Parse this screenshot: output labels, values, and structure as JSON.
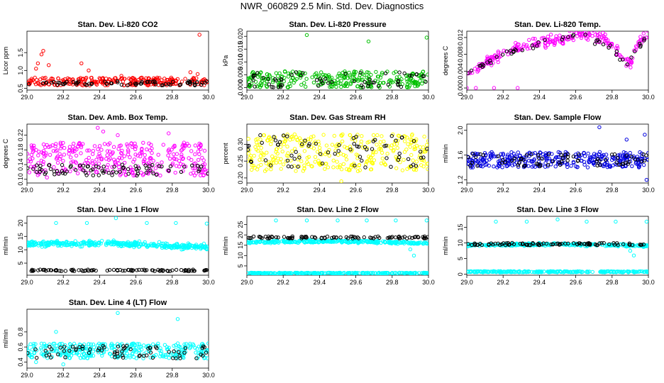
{
  "page": {
    "title": "NWR_060829  2.5 Min. Std. Dev. Diagnostics"
  },
  "chart_data": [
    {
      "type": "scatter",
      "title": "Stan. Dev. Li-820 CO2",
      "ylabel": "Licor ppm",
      "xlim": [
        29.0,
        30.0
      ],
      "ylim": [
        0.45,
        2.1
      ],
      "xticks": [
        "29.0",
        "29.2",
        "29.4",
        "29.6",
        "29.8",
        "30.0"
      ],
      "yticks": [
        "0.5",
        "1.0",
        "1.5"
      ],
      "colors": {
        "main": "#ff0000",
        "secondary": "#000000"
      },
      "series": [
        {
          "color": "#ff0000",
          "band": [
            0.58,
            0.8
          ],
          "count": 260,
          "outliers": [
            [
              29.08,
              1.45
            ],
            [
              29.09,
              1.55
            ],
            [
              29.06,
              1.2
            ],
            [
              29.12,
              1.15
            ],
            [
              29.05,
              1.05
            ],
            [
              29.3,
              1.2
            ],
            [
              29.34,
              1.0
            ],
            [
              29.95,
              2.0
            ],
            [
              29.9,
              0.95
            ],
            [
              29.94,
              0.9
            ],
            [
              29.52,
              0.85
            ]
          ]
        },
        {
          "color": "#000000",
          "band": [
            0.58,
            0.7
          ],
          "count": 70,
          "outliers": []
        }
      ]
    },
    {
      "type": "scatter",
      "title": "Stan. Dev. Li-820 Pressure",
      "ylabel": "kPa",
      "xlim": [
        29.0,
        30.0
      ],
      "ylim": [
        -0.001,
        0.022
      ],
      "xticks": [
        "29.0",
        "29.2",
        "29.4",
        "29.6",
        "29.8",
        "30.0"
      ],
      "yticks": [
        "0.000",
        "0.005",
        "0.010",
        "0.015",
        "0.020"
      ],
      "colors": {
        "main": "#00c000",
        "secondary": "#000000"
      },
      "series": [
        {
          "color": "#00c000",
          "band": [
            0.0,
            0.0065
          ],
          "count": 280,
          "outliers": [
            [
              29.33,
              0.0205
            ],
            [
              29.67,
              0.018
            ],
            [
              29.99,
              0.0195
            ]
          ]
        },
        {
          "color": "#000000",
          "band": [
            0.0,
            0.006
          ],
          "count": 60,
          "outliers": []
        }
      ]
    },
    {
      "type": "scatter",
      "title": "Stan. Dev. Li-820 Temp.",
      "ylabel": "degrees C",
      "xlim": [
        29.0,
        30.0
      ],
      "ylim": [
        -0.0005,
        0.0135
      ],
      "xticks": [
        "29.0",
        "29.2",
        "29.4",
        "29.6",
        "29.8",
        "30.0"
      ],
      "yticks": [
        "0.000",
        "0.004",
        "0.008",
        "0.012"
      ],
      "colors": {
        "main": "#ff00ff",
        "secondary": "#000000"
      },
      "series": [
        {
          "color": "#ff00ff",
          "curve": [
            [
              29.0,
              0.003
            ],
            [
              29.1,
              0.006
            ],
            [
              29.2,
              0.008
            ],
            [
              29.3,
              0.01
            ],
            [
              29.45,
              0.011
            ],
            [
              29.55,
              0.012
            ],
            [
              29.65,
              0.0128
            ],
            [
              29.75,
              0.012
            ],
            [
              29.8,
              0.01
            ],
            [
              29.86,
              0.007
            ],
            [
              29.9,
              0.006
            ],
            [
              29.95,
              0.011
            ],
            [
              30.0,
              0.013
            ]
          ],
          "spread": 0.0018,
          "count": 240,
          "outliers": [
            [
              29.0,
              0.0
            ],
            [
              29.05,
              0.0
            ],
            [
              29.15,
              0.0
            ],
            [
              29.28,
              0.0
            ]
          ]
        },
        {
          "color": "#000000",
          "curve": [
            [
              29.0,
              0.003
            ],
            [
              29.2,
              0.008
            ],
            [
              29.45,
              0.011
            ],
            [
              29.65,
              0.0125
            ],
            [
              29.8,
              0.009
            ],
            [
              29.88,
              0.006
            ],
            [
              30.0,
              0.0128
            ]
          ],
          "spread": 0.0012,
          "count": 50,
          "outliers": []
        }
      ]
    },
    {
      "type": "scatter",
      "title": "Stan. Dev. Amb. Box Temp.",
      "ylabel": "degrees C",
      "xlim": [
        29.0,
        30.0
      ],
      "ylim": [
        0.09,
        0.25
      ],
      "xticks": [
        "29.0",
        "29.2",
        "29.4",
        "29.6",
        "29.8",
        "30.0"
      ],
      "yticks": [
        "0.10",
        "0.14",
        "0.18",
        "0.22"
      ],
      "colors": {
        "main": "#ff00ff",
        "secondary": "#000000"
      },
      "series": [
        {
          "color": "#ff00ff",
          "band": [
            0.11,
            0.2
          ],
          "count": 330,
          "outliers": [
            [
              29.39,
              0.24
            ],
            [
              29.42,
              0.23
            ],
            [
              29.5,
              0.22
            ],
            [
              29.78,
              0.225
            ],
            [
              29.11,
              0.105
            ]
          ]
        },
        {
          "color": "#000000",
          "band": [
            0.11,
            0.14
          ],
          "count": 80,
          "outliers": []
        }
      ]
    },
    {
      "type": "scatter",
      "title": "Stan. Dev. Gas Stream RH",
      "ylabel": "percent",
      "xlim": [
        29.0,
        30.0
      ],
      "ylim": [
        0.185,
        0.36
      ],
      "xticks": [
        "29.0",
        "29.2",
        "29.4",
        "29.6",
        "29.8",
        "30.0"
      ],
      "yticks": [
        "0.20",
        "0.25",
        "0.30"
      ],
      "colors": {
        "main": "#ffff00",
        "secondary": "#000000"
      },
      "series": [
        {
          "color": "#ffff00",
          "band": [
            0.22,
            0.33
          ],
          "count": 320,
          "outliers": [
            [
              29.52,
              0.19
            ]
          ]
        },
        {
          "color": "#000000",
          "band": [
            0.23,
            0.33
          ],
          "count": 70,
          "outliers": []
        }
      ]
    },
    {
      "type": "scatter",
      "title": "Stan. Dev. Sample Flow",
      "ylabel": "ml/min",
      "xlim": [
        29.0,
        30.0
      ],
      "ylim": [
        1.15,
        2.1
      ],
      "xticks": [
        "29.0",
        "29.2",
        "29.4",
        "29.6",
        "29.8",
        "30.0"
      ],
      "yticks": [
        "1.2",
        "1.6",
        "2.0"
      ],
      "colors": {
        "main": "#0000e0",
        "secondary": "#000000"
      },
      "series": [
        {
          "color": "#0000e0",
          "band": [
            1.4,
            1.65
          ],
          "count": 330,
          "outliers": [
            [
              29.98,
              1.93
            ],
            [
              29.73,
              2.05
            ],
            [
              29.88,
              1.85
            ],
            [
              29.99,
              1.2
            ]
          ]
        },
        {
          "color": "#000000",
          "band": [
            1.42,
            1.62
          ],
          "count": 70,
          "outliers": []
        }
      ]
    },
    {
      "type": "scatter",
      "title": "Stan. Dev. Line 1 Flow",
      "ylabel": "ml/min",
      "xlim": [
        29.0,
        30.0
      ],
      "ylim": [
        0.5,
        22.5
      ],
      "xticks": [
        "29.0",
        "29.2",
        "29.4",
        "29.6",
        "29.8",
        "30.0"
      ],
      "yticks": [
        "5",
        "10",
        "15",
        "20"
      ],
      "colors": {
        "main": "#00ffff",
        "secondary": "#000000"
      },
      "series": [
        {
          "color": "#00ffff",
          "curve": [
            [
              29.0,
              12.2
            ],
            [
              29.5,
              12.3
            ],
            [
              30.0,
              11.0
            ]
          ],
          "spread": 1.5,
          "count": 360,
          "outliers": [
            [
              29.16,
              20.0
            ],
            [
              29.33,
              20.0
            ],
            [
              29.49,
              21.8
            ],
            [
              29.66,
              20.0
            ],
            [
              29.82,
              20.0
            ],
            [
              29.99,
              19.8
            ]
          ]
        },
        {
          "color": "#000000",
          "band": [
            2.0,
            2.6
          ],
          "count": 90,
          "outliers": []
        }
      ]
    },
    {
      "type": "scatter",
      "title": "Stan. Dev. Line 2 Flow",
      "ylabel": "ml/min",
      "xlim": [
        29.0,
        30.0
      ],
      "ylim": [
        0.5,
        29.0
      ],
      "xticks": [
        "29.0",
        "29.2",
        "29.4",
        "29.6",
        "29.8",
        "30.0"
      ],
      "yticks": [
        "5",
        "10",
        "15",
        "20",
        "25"
      ],
      "colors": {
        "main": "#00ffff",
        "secondary": "#000000"
      },
      "series": [
        {
          "color": "#00ffff",
          "curve": [
            [
              29.0,
              16.5
            ],
            [
              29.5,
              17.0
            ],
            [
              30.0,
              16.0
            ]
          ],
          "spread": 0.9,
          "count": 300,
          "outliers": [
            [
              29.16,
              27.0
            ],
            [
              29.33,
              27.0
            ],
            [
              29.5,
              27.0
            ],
            [
              29.66,
              27.0
            ],
            [
              29.82,
              27.0
            ],
            [
              29.99,
              27.0
            ],
            [
              29.92,
              10.0
            ],
            [
              29.9,
              13.0
            ]
          ]
        },
        {
          "color": "#00ffff",
          "band": [
            1.3,
            1.7
          ],
          "count": 260,
          "outliers": []
        },
        {
          "color": "#000000",
          "band": [
            18.3,
            19.3
          ],
          "count": 90,
          "outliers": []
        }
      ]
    },
    {
      "type": "scatter",
      "title": "Stan. Dev. Line 3 Flow",
      "ylabel": "ml/min",
      "xlim": [
        29.0,
        30.0
      ],
      "ylim": [
        -0.3,
        18.5
      ],
      "xticks": [
        "29.0",
        "29.2",
        "29.4",
        "29.6",
        "29.8",
        "30.0"
      ],
      "yticks": [
        "0",
        "5",
        "10",
        "15"
      ],
      "colors": {
        "main": "#00ffff",
        "secondary": "#000000"
      },
      "series": [
        {
          "color": "#00ffff",
          "curve": [
            [
              29.0,
              9.3
            ],
            [
              29.5,
              9.6
            ],
            [
              30.0,
              9.1
            ]
          ],
          "spread": 0.6,
          "count": 280,
          "outliers": [
            [
              29.16,
              16.8
            ],
            [
              29.33,
              16.8
            ],
            [
              29.5,
              17.5
            ],
            [
              29.66,
              16.8
            ],
            [
              29.82,
              16.8
            ],
            [
              29.99,
              16.8
            ],
            [
              29.92,
              6.0
            ],
            [
              29.9,
              7.5
            ]
          ]
        },
        {
          "color": "#00ffff",
          "band": [
            0.6,
            1.0
          ],
          "count": 260,
          "outliers": []
        },
        {
          "color": "#000000",
          "band": [
            9.3,
            10.0
          ],
          "count": 90,
          "outliers": []
        }
      ]
    },
    {
      "type": "scatter",
      "title": "Stan. Dev. Line 4 (LT) Flow",
      "ylabel": "ml/min",
      "xlim": [
        29.0,
        30.0
      ],
      "ylim": [
        0.32,
        1.1
      ],
      "xticks": [
        "29.0",
        "29.2",
        "29.4",
        "29.6",
        "29.8",
        "30.0"
      ],
      "yticks": [
        "0.4",
        "0.6",
        "0.8"
      ],
      "colors": {
        "main": "#00ffff",
        "secondary": "#000000"
      },
      "series": [
        {
          "color": "#00ffff",
          "band": [
            0.45,
            0.65
          ],
          "count": 320,
          "outliers": [
            [
              29.16,
              0.8
            ],
            [
              29.5,
              1.05
            ],
            [
              29.83,
              0.97
            ],
            [
              29.2,
              0.37
            ],
            [
              29.05,
              0.4
            ]
          ]
        },
        {
          "color": "#000000",
          "band": [
            0.45,
            0.62
          ],
          "count": 70,
          "outliers": []
        }
      ]
    }
  ]
}
